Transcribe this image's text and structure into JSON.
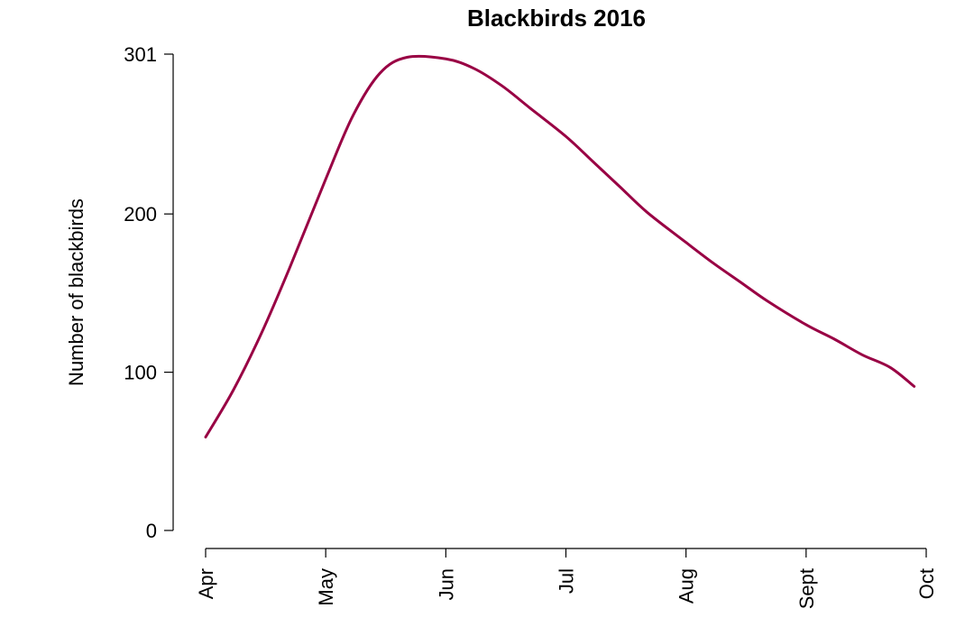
{
  "chart_data": {
    "type": "line",
    "title": "Blackbirds 2016",
    "xlabel": "",
    "ylabel": "Number of blackbirds",
    "x_ticks": [
      "Apr",
      "May",
      "Jun",
      "Jul",
      "Aug",
      "Sept",
      "Oct"
    ],
    "y_ticks": [
      0,
      100,
      200,
      301
    ],
    "ylim": [
      0,
      301
    ],
    "grid": false,
    "legend": "none",
    "series": [
      {
        "color": "#990044",
        "x": [
          "Apr 1",
          "Apr 8",
          "Apr 15",
          "Apr 22",
          "May 1",
          "May 8",
          "May 15",
          "May 22",
          "Jun 1",
          "Jun 8",
          "Jun 15",
          "Jun 22",
          "Jul 1",
          "Jul 8",
          "Jul 15",
          "Jul 22",
          "Aug 1",
          "Aug 8",
          "Aug 15",
          "Aug 22",
          "Sept 1",
          "Sept 8",
          "Sept 15",
          "Sept 22",
          "Sept 28"
        ],
        "x_pos": [
          0,
          0.233,
          0.467,
          0.7,
          1.0,
          1.226,
          1.452,
          1.677,
          2.0,
          2.233,
          2.467,
          2.7,
          3.0,
          3.226,
          3.452,
          3.677,
          4.0,
          4.226,
          4.452,
          4.677,
          5.0,
          5.233,
          5.467,
          5.7,
          5.9
        ],
        "values": [
          59,
          89,
          125,
          166,
          222,
          262,
          289,
          299,
          298,
          292,
          281,
          267,
          249,
          233,
          217,
          201,
          182,
          169,
          157,
          145,
          130,
          121,
          111,
          103,
          91
        ]
      }
    ]
  }
}
